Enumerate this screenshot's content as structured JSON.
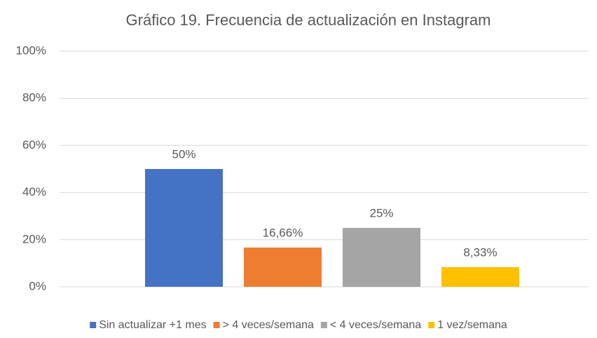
{
  "chart_data": {
    "type": "bar",
    "title": "Gráfico 19. Frecuencia de actualización en Instagram",
    "categories": [
      null
    ],
    "series": [
      {
        "name": "Sin actualizar +1 mes",
        "color": "#4472c4",
        "values": [
          50
        ],
        "value_labels": [
          "50%"
        ]
      },
      {
        "name": "> 4 veces/semana",
        "color": "#ed7d31",
        "values": [
          16.66
        ],
        "value_labels": [
          "16,66%"
        ]
      },
      {
        "name": "< 4 veces/semana",
        "color": "#a5a5a5",
        "values": [
          25
        ],
        "value_labels": [
          "25%"
        ]
      },
      {
        "name": "1 vez/semana",
        "color": "#ffc000",
        "values": [
          8.33
        ],
        "value_labels": [
          "8,33%"
        ]
      }
    ],
    "ylim": [
      0,
      100
    ],
    "yticks": [
      {
        "value": 0,
        "label": "0%"
      },
      {
        "value": 20,
        "label": "20%"
      },
      {
        "value": 40,
        "label": "40%"
      },
      {
        "value": 60,
        "label": "60%"
      },
      {
        "value": 80,
        "label": "80%"
      },
      {
        "value": 100,
        "label": "100%"
      }
    ],
    "grid": true,
    "legend": "bottom"
  }
}
